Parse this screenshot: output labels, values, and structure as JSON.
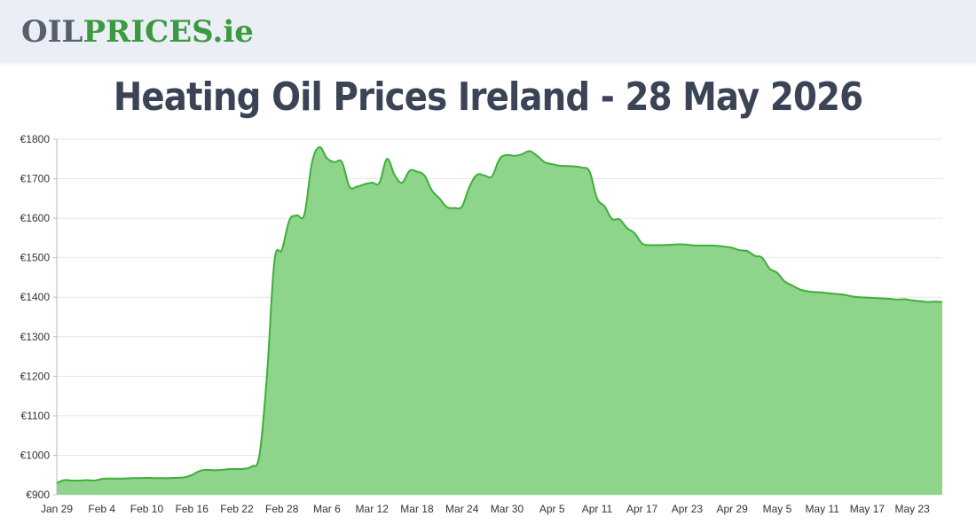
{
  "header": {
    "logo_part1": "OIL",
    "logo_part2": "PRICES",
    "logo_part3": ".ie"
  },
  "page_title": "Heating Oil Prices Ireland - 28 May 2026",
  "colors": {
    "line": "#3fae3c",
    "fill": "#8ed48b",
    "grid": "#e6e6e6"
  },
  "chart_data": {
    "type": "area",
    "title": "Heating Oil Prices Ireland - 28 May 2026",
    "xlabel": "",
    "ylabel": "",
    "ylim": [
      900,
      1800
    ],
    "yticks": [
      900,
      1000,
      1100,
      1200,
      1300,
      1400,
      1500,
      1600,
      1700,
      1800
    ],
    "ytick_prefix": "€",
    "x_tick_labels": [
      "Jan 29",
      "Feb 4",
      "Feb 10",
      "Feb 16",
      "Feb 22",
      "Feb 28",
      "Mar 6",
      "Mar 12",
      "Mar 18",
      "Mar 24",
      "Mar 30",
      "Apr 5",
      "Apr 11",
      "Apr 17",
      "Apr 23",
      "Apr 29",
      "May 5",
      "May 11",
      "May 17",
      "May 23"
    ],
    "grid": true,
    "series": [
      {
        "x": [
          0,
          1,
          2,
          3,
          4,
          5,
          6,
          7,
          8,
          9,
          10,
          11,
          12,
          13,
          14,
          15,
          16,
          17,
          18,
          19,
          20,
          21,
          22,
          23,
          24,
          25,
          26,
          27,
          28,
          29,
          30,
          31,
          32,
          33,
          34,
          35,
          36,
          37,
          38,
          39,
          40,
          41,
          42,
          43,
          44,
          45,
          46,
          47,
          48,
          49,
          50,
          51,
          52,
          53,
          54,
          55,
          56,
          57,
          58,
          59,
          60,
          61,
          62,
          63,
          64,
          65,
          66,
          67,
          68,
          69,
          70,
          71,
          72,
          73,
          74,
          75,
          76,
          77,
          78,
          79,
          80,
          81,
          82,
          83,
          84,
          85,
          86,
          87,
          88,
          89,
          90,
          91,
          92,
          93,
          94,
          95,
          96,
          97,
          98,
          99,
          100,
          101,
          102,
          103,
          104,
          105,
          106,
          107,
          108,
          109,
          110,
          111,
          112,
          113,
          114,
          115,
          116,
          117,
          118
        ],
        "values": [
          930,
          937,
          936,
          936,
          937,
          936,
          940,
          941,
          941,
          941,
          942,
          942,
          943,
          942,
          942,
          942,
          943,
          944,
          950,
          960,
          963,
          962,
          963,
          965,
          965,
          966,
          972,
          1000,
          1200,
          1490,
          1520,
          1595,
          1607,
          1610,
          1740,
          1780,
          1752,
          1742,
          1742,
          1680,
          1680,
          1686,
          1690,
          1690,
          1750,
          1710,
          1690,
          1720,
          1718,
          1708,
          1670,
          1650,
          1628,
          1626,
          1630,
          1680,
          1710,
          1708,
          1706,
          1750,
          1760,
          1758,
          1762,
          1770,
          1758,
          1742,
          1737,
          1733,
          1732,
          1731,
          1728,
          1718,
          1650,
          1630,
          1598,
          1597,
          1575,
          1562,
          1536,
          1532,
          1532,
          1532,
          1533,
          1534,
          1533,
          1531,
          1531,
          1531,
          1530,
          1528,
          1525,
          1519,
          1517,
          1505,
          1500,
          1472,
          1462,
          1440,
          1430,
          1420,
          1415,
          1413,
          1412,
          1410,
          1408,
          1406,
          1402,
          1400,
          1399,
          1398,
          1397,
          1396,
          1394,
          1395,
          1392,
          1390,
          1388,
          1389,
          1388
        ]
      }
    ]
  }
}
